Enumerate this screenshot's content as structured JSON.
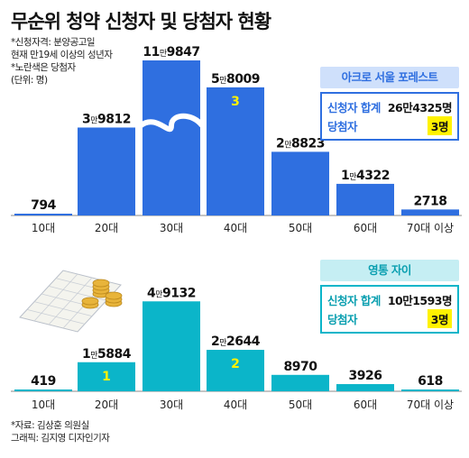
{
  "title": "무순위 청약 신청자 및 당첨자 현황",
  "notes": [
    "*신청자격: 분양공고일",
    "현재 만19세 이상의 성년자",
    "*노란색은 당첨자",
    "(단위: 명)"
  ],
  "panels": [
    {
      "complex": "아크로 서울 포레스트",
      "applicants_label": "신청자 합계",
      "applicants_total": "26만4325명",
      "winners_label": "당첨자",
      "winners_total": "3명",
      "color": "#2f6fe0",
      "tag_bg": "#cfe0fb",
      "tag_fg": "#2f6fe0"
    },
    {
      "complex": "영통 자이",
      "applicants_label": "신청자 합계",
      "applicants_total": "10만1593명",
      "winners_label": "당첨자",
      "winners_total": "3명",
      "color": "#0bb5c9",
      "tag_bg": "#c5eef3",
      "tag_fg": "#0a9fb0"
    }
  ],
  "chart_data": [
    {
      "type": "bar",
      "title": "아크로 서울 포레스트",
      "categories": [
        "10대",
        "20대",
        "30대",
        "40대",
        "50대",
        "60대",
        "70대 이상"
      ],
      "values": [
        794,
        39812,
        119847,
        58009,
        28823,
        14322,
        2718
      ],
      "value_labels": [
        "794",
        "3만9812",
        "11만9847",
        "5만8009",
        "2만8823",
        "1만4322",
        "2718"
      ],
      "winners": [
        null,
        null,
        null,
        3,
        null,
        null,
        null
      ],
      "axis_break": "30대"
    },
    {
      "type": "bar",
      "title": "영통 자이",
      "categories": [
        "10대",
        "20대",
        "30대",
        "40대",
        "50대",
        "60대",
        "70대 이상"
      ],
      "values": [
        419,
        15884,
        49132,
        22644,
        8970,
        3926,
        618
      ],
      "value_labels": [
        "419",
        "1만5884",
        "4만9132",
        "2만2644",
        "8970",
        "3926",
        "618"
      ],
      "winners": [
        null,
        1,
        null,
        2,
        null,
        null,
        null
      ]
    }
  ],
  "footer": [
    "*자료: 김상훈 의원실",
    "그래픽: 김지영 디자인기자"
  ]
}
